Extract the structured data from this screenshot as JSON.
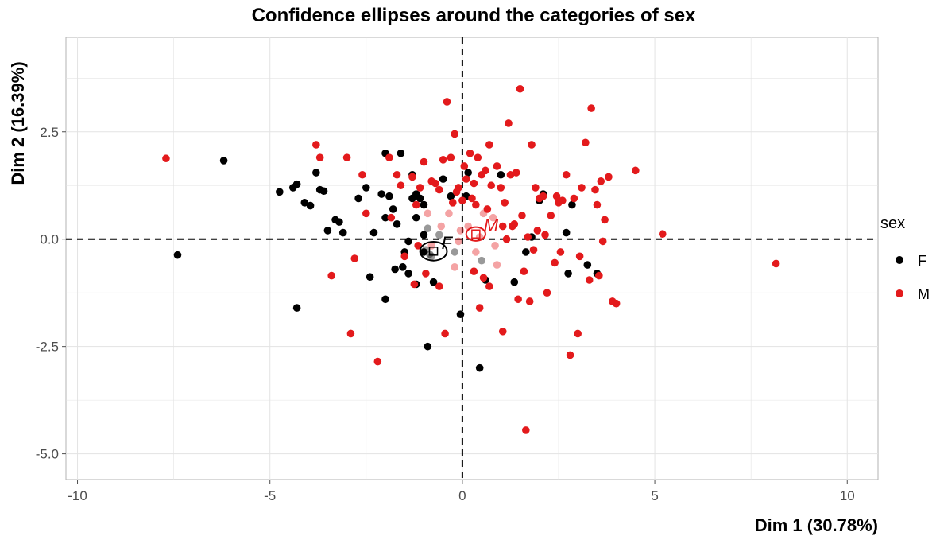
{
  "chart_data": {
    "type": "scatter",
    "title": "Confidence ellipses around the categories of sex",
    "xlabel": "Dim 1 (30.78%)",
    "ylabel": "Dim 2 (16.39%)",
    "xlim": [
      -10.3,
      10.8
    ],
    "ylim": [
      -5.6,
      4.7
    ],
    "xticks": [
      -10,
      -5,
      0,
      5,
      10
    ],
    "xtick_labels": [
      "-10",
      "-5",
      "0",
      "5",
      "10"
    ],
    "yticks": [
      -5,
      -2.5,
      0,
      2.5
    ],
    "ytick_labels": [
      "-5.0",
      "-2.5",
      "0.0",
      "2.5"
    ],
    "grid": true,
    "reference_lines": {
      "x": 0,
      "y": 0,
      "style": "dashed"
    },
    "legend": {
      "title": "sex",
      "position": "right",
      "entries": [
        {
          "label": "F",
          "color": "#000000"
        },
        {
          "label": "M",
          "color": "#e31a1c"
        }
      ]
    },
    "category_centers": [
      {
        "label": "F",
        "x": -0.75,
        "y": -0.28,
        "color": "#000000",
        "ellipse_rx": 0.35,
        "ellipse_ry": 0.22
      },
      {
        "label": "M",
        "x": 0.35,
        "y": 0.12,
        "color": "#e31a1c",
        "ellipse_rx": 0.25,
        "ellipse_ry": 0.16
      }
    ],
    "series": [
      {
        "name": "F",
        "color": "#000000",
        "points": [
          [
            -7.4,
            -0.37
          ],
          [
            -6.2,
            1.83
          ],
          [
            -4.75,
            1.1
          ],
          [
            -4.4,
            1.2
          ],
          [
            -4.3,
            1.28
          ],
          [
            -4.1,
            0.85
          ],
          [
            -3.95,
            0.78
          ],
          [
            -3.8,
            1.55
          ],
          [
            -3.7,
            1.15
          ],
          [
            -3.6,
            1.12
          ],
          [
            -3.5,
            0.2
          ],
          [
            -3.3,
            0.45
          ],
          [
            -3.2,
            0.4
          ],
          [
            -3.1,
            0.15
          ],
          [
            -4.3,
            -1.6
          ],
          [
            -2.7,
            0.95
          ],
          [
            -2.5,
            1.2
          ],
          [
            -2.3,
            0.15
          ],
          [
            -2.4,
            -0.88
          ],
          [
            -2.1,
            1.05
          ],
          [
            -2.0,
            0.5
          ],
          [
            -1.9,
            1.0
          ],
          [
            -1.8,
            0.7
          ],
          [
            -1.7,
            0.35
          ],
          [
            -1.6,
            2.0
          ],
          [
            -1.5,
            -0.3
          ],
          [
            -1.55,
            -0.65
          ],
          [
            -1.4,
            -0.8
          ],
          [
            -1.3,
            1.5
          ],
          [
            -1.2,
            1.05
          ],
          [
            -1.1,
            0.95
          ],
          [
            -1.0,
            0.8
          ],
          [
            -0.9,
            0.25
          ],
          [
            -0.8,
            -0.4
          ],
          [
            -0.75,
            -1.0
          ],
          [
            -1.2,
            -1.05
          ],
          [
            -0.9,
            -2.5
          ],
          [
            -0.5,
            1.4
          ],
          [
            -0.3,
            1.0
          ],
          [
            -0.2,
            -0.3
          ],
          [
            -0.05,
            -1.75
          ],
          [
            0.1,
            1.0
          ],
          [
            0.15,
            1.55
          ],
          [
            0.45,
            -3.0
          ],
          [
            0.5,
            -0.5
          ],
          [
            0.6,
            -0.95
          ],
          [
            1.0,
            1.5
          ],
          [
            1.35,
            -1.0
          ],
          [
            1.65,
            -0.3
          ],
          [
            1.8,
            0.05
          ],
          [
            2.0,
            0.9
          ],
          [
            2.1,
            1.05
          ],
          [
            2.7,
            0.15
          ],
          [
            2.75,
            -0.8
          ],
          [
            2.85,
            0.8
          ],
          [
            3.25,
            -0.6
          ],
          [
            3.5,
            -0.8
          ],
          [
            -2.0,
            2.0
          ],
          [
            -2.0,
            -1.4
          ],
          [
            -1.3,
            0.95
          ],
          [
            -1.0,
            0.1
          ],
          [
            -1.2,
            0.5
          ],
          [
            -0.6,
            0.1
          ],
          [
            -1.4,
            -0.05
          ],
          [
            -1.75,
            -0.7
          ],
          [
            -1.0,
            -0.3
          ],
          [
            -0.95,
            -0.25
          ],
          [
            -0.85,
            -0.35
          ]
        ]
      },
      {
        "name": "M",
        "color": "#e31a1c",
        "points": [
          [
            -7.7,
            1.88
          ],
          [
            -3.8,
            2.2
          ],
          [
            -3.7,
            1.9
          ],
          [
            -3.4,
            -0.85
          ],
          [
            -3.0,
            1.9
          ],
          [
            -2.9,
            -2.2
          ],
          [
            -2.8,
            -0.45
          ],
          [
            -2.6,
            1.5
          ],
          [
            -2.5,
            0.6
          ],
          [
            -2.2,
            -2.85
          ],
          [
            -1.9,
            1.9
          ],
          [
            -1.85,
            0.5
          ],
          [
            -1.7,
            1.5
          ],
          [
            -1.5,
            -0.4
          ],
          [
            -1.3,
            1.45
          ],
          [
            -1.2,
            0.8
          ],
          [
            -1.1,
            1.2
          ],
          [
            -1.0,
            1.8
          ],
          [
            -0.9,
            0.6
          ],
          [
            -0.8,
            1.35
          ],
          [
            -0.7,
            1.3
          ],
          [
            -0.6,
            1.15
          ],
          [
            -0.5,
            1.85
          ],
          [
            -0.45,
            -2.2
          ],
          [
            -0.4,
            3.2
          ],
          [
            -0.3,
            1.9
          ],
          [
            -0.2,
            2.45
          ],
          [
            -0.15,
            1.1
          ],
          [
            -0.1,
            1.2
          ],
          [
            0.0,
            0.9
          ],
          [
            0.05,
            1.7
          ],
          [
            0.1,
            1.4
          ],
          [
            0.2,
            2.0
          ],
          [
            0.3,
            1.3
          ],
          [
            0.35,
            0.8
          ],
          [
            0.4,
            1.9
          ],
          [
            0.45,
            -1.6
          ],
          [
            0.5,
            1.5
          ],
          [
            0.55,
            0.6
          ],
          [
            0.6,
            1.6
          ],
          [
            0.7,
            2.2
          ],
          [
            0.75,
            1.25
          ],
          [
            0.8,
            0.5
          ],
          [
            0.9,
            1.7
          ],
          [
            1.0,
            1.2
          ],
          [
            1.05,
            -2.15
          ],
          [
            1.1,
            0.85
          ],
          [
            1.2,
            2.7
          ],
          [
            1.25,
            1.5
          ],
          [
            1.3,
            0.3
          ],
          [
            1.4,
            1.55
          ],
          [
            1.45,
            -1.4
          ],
          [
            1.5,
            3.5
          ],
          [
            1.55,
            0.55
          ],
          [
            1.6,
            -0.75
          ],
          [
            1.65,
            -4.45
          ],
          [
            1.7,
            0.05
          ],
          [
            1.75,
            -1.45
          ],
          [
            1.8,
            2.2
          ],
          [
            1.9,
            1.2
          ],
          [
            2.0,
            0.95
          ],
          [
            2.1,
            1.0
          ],
          [
            2.2,
            -1.25
          ],
          [
            2.3,
            0.55
          ],
          [
            2.4,
            -0.55
          ],
          [
            2.5,
            0.85
          ],
          [
            2.55,
            -0.3
          ],
          [
            2.6,
            0.9
          ],
          [
            2.7,
            1.5
          ],
          [
            2.8,
            -2.7
          ],
          [
            2.9,
            0.95
          ],
          [
            3.0,
            -2.2
          ],
          [
            3.05,
            -0.4
          ],
          [
            3.1,
            1.2
          ],
          [
            3.2,
            2.25
          ],
          [
            3.3,
            -0.95
          ],
          [
            3.35,
            3.05
          ],
          [
            3.45,
            1.15
          ],
          [
            3.5,
            0.8
          ],
          [
            3.55,
            -0.85
          ],
          [
            3.6,
            1.35
          ],
          [
            3.65,
            -0.05
          ],
          [
            3.7,
            0.45
          ],
          [
            3.8,
            1.45
          ],
          [
            3.9,
            -1.45
          ],
          [
            4.0,
            -1.5
          ],
          [
            4.5,
            1.6
          ],
          [
            5.2,
            0.12
          ],
          [
            8.15,
            -0.57
          ],
          [
            -1.25,
            -1.05
          ],
          [
            -0.95,
            -0.8
          ],
          [
            -0.6,
            -1.1
          ],
          [
            -0.2,
            -0.65
          ],
          [
            0.3,
            -0.75
          ],
          [
            0.55,
            -0.9
          ],
          [
            0.7,
            -1.1
          ],
          [
            0.9,
            -0.6
          ],
          [
            0.25,
            0.95
          ],
          [
            0.15,
            0.3
          ],
          [
            -0.05,
            0.2
          ],
          [
            0.35,
            -0.3
          ],
          [
            0.65,
            0.7
          ],
          [
            1.15,
            0.0
          ],
          [
            1.35,
            0.35
          ],
          [
            1.85,
            -0.25
          ],
          [
            2.15,
            0.1
          ],
          [
            -1.6,
            1.25
          ],
          [
            -1.15,
            -0.15
          ],
          [
            -0.35,
            0.6
          ],
          [
            -0.55,
            0.3
          ],
          [
            -0.25,
            0.85
          ],
          [
            0.85,
            -0.15
          ],
          [
            1.95,
            0.2
          ],
          [
            2.45,
            1.0
          ],
          [
            1.05,
            0.3
          ],
          [
            -0.8,
            -0.15
          ],
          [
            0.45,
            0.05
          ],
          [
            -0.1,
            -0.05
          ]
        ]
      }
    ]
  }
}
